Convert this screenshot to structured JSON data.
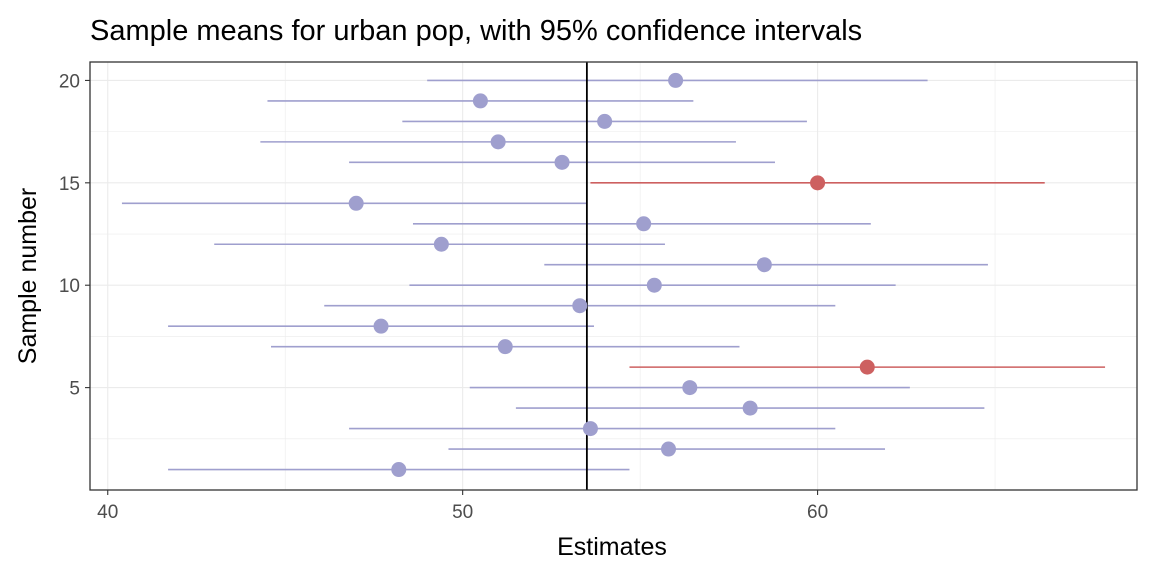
{
  "chart_data": {
    "type": "scatter",
    "title": "Sample means for urban pop, with 95% confidence intervals",
    "xlabel": "Estimates",
    "ylabel": "Sample number",
    "xlim": [
      39.5,
      69.0
    ],
    "ylim": [
      0.0,
      20.9
    ],
    "xticks": [
      40,
      50,
      60
    ],
    "yticks": [
      5,
      10,
      15
    ],
    "ytick_labels_shown": [
      "5",
      "10",
      "15",
      "20"
    ],
    "ytick_values_shown": [
      5,
      10,
      15,
      20
    ],
    "grid": true,
    "reference_line": 53.5,
    "colors": {
      "covers": "#9f9fce",
      "misses": "#cd6060"
    },
    "samples": [
      {
        "sample": 1,
        "estimate": 48.2,
        "lower": 41.7,
        "upper": 54.7,
        "covers": true
      },
      {
        "sample": 2,
        "estimate": 55.8,
        "lower": 49.6,
        "upper": 61.9,
        "covers": true
      },
      {
        "sample": 3,
        "estimate": 53.6,
        "lower": 46.8,
        "upper": 60.5,
        "covers": true
      },
      {
        "sample": 4,
        "estimate": 58.1,
        "lower": 51.5,
        "upper": 64.7,
        "covers": true
      },
      {
        "sample": 5,
        "estimate": 56.4,
        "lower": 50.2,
        "upper": 62.6,
        "covers": true
      },
      {
        "sample": 6,
        "estimate": 61.4,
        "lower": 54.7,
        "upper": 68.1,
        "covers": false
      },
      {
        "sample": 7,
        "estimate": 51.2,
        "lower": 44.6,
        "upper": 57.8,
        "covers": true
      },
      {
        "sample": 8,
        "estimate": 47.7,
        "lower": 41.7,
        "upper": 53.7,
        "covers": true
      },
      {
        "sample": 9,
        "estimate": 53.3,
        "lower": 46.1,
        "upper": 60.5,
        "covers": true
      },
      {
        "sample": 10,
        "estimate": 55.4,
        "lower": 48.5,
        "upper": 62.2,
        "covers": true
      },
      {
        "sample": 11,
        "estimate": 58.5,
        "lower": 52.3,
        "upper": 64.8,
        "covers": true
      },
      {
        "sample": 12,
        "estimate": 49.4,
        "lower": 43.0,
        "upper": 55.7,
        "covers": true
      },
      {
        "sample": 13,
        "estimate": 55.1,
        "lower": 48.6,
        "upper": 61.5,
        "covers": true
      },
      {
        "sample": 14,
        "estimate": 47.0,
        "lower": 40.4,
        "upper": 53.5,
        "covers": true
      },
      {
        "sample": 15,
        "estimate": 60.0,
        "lower": 53.6,
        "upper": 66.4,
        "covers": false
      },
      {
        "sample": 16,
        "estimate": 52.8,
        "lower": 46.8,
        "upper": 58.8,
        "covers": true
      },
      {
        "sample": 17,
        "estimate": 51.0,
        "lower": 44.3,
        "upper": 57.7,
        "covers": true
      },
      {
        "sample": 18,
        "estimate": 54.0,
        "lower": 48.3,
        "upper": 59.7,
        "covers": true
      },
      {
        "sample": 19,
        "estimate": 50.5,
        "lower": 44.5,
        "upper": 56.5,
        "covers": true
      },
      {
        "sample": 20,
        "estimate": 56.0,
        "lower": 49.0,
        "upper": 63.1,
        "covers": true
      }
    ]
  }
}
